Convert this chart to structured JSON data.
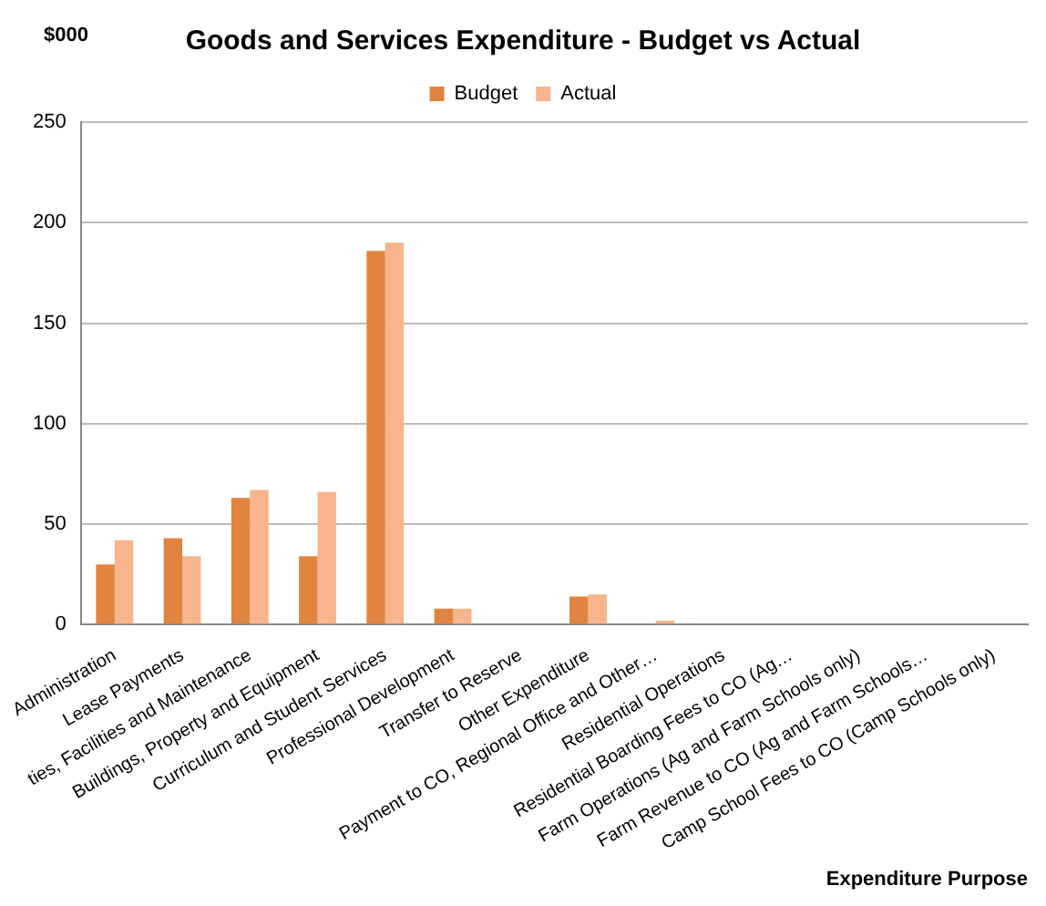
{
  "chart_data": {
    "type": "bar",
    "title": "Goods and Services Expenditure - Budget vs Actual",
    "ylabel": "$000",
    "xlabel": "Expenditure Purpose",
    "categories": [
      "Administration",
      "Lease Payments",
      "ties, Facilities and Maintenance",
      "Buildings, Property and Equipment",
      "Curriculum and Student Services",
      "Professional Development",
      "Transfer to Reserve",
      "Other Expenditure",
      "Payment to CO, Regional Office and Other…",
      "Residential Operations",
      "Residential Boarding Fees to CO (Ag…",
      "Farm Operations (Ag and Farm Schools only)",
      "Farm Revenue to CO (Ag and Farm Schools…",
      "Camp School Fees to CO (Camp Schools only)"
    ],
    "series": [
      {
        "name": "Budget",
        "color": "#e0843f",
        "values": [
          30,
          43,
          63,
          34,
          186,
          8,
          0,
          14,
          0,
          0,
          0,
          0,
          0,
          0
        ]
      },
      {
        "name": "Actual",
        "color": "#f8b48c",
        "values": [
          42,
          34,
          67,
          66,
          190,
          8,
          0,
          15,
          2,
          0,
          0,
          0,
          0,
          0
        ]
      }
    ],
    "ylim": [
      0,
      250
    ],
    "yticks": [
      0,
      50,
      100,
      150,
      200,
      250
    ],
    "grid": "y",
    "legend": "top"
  }
}
